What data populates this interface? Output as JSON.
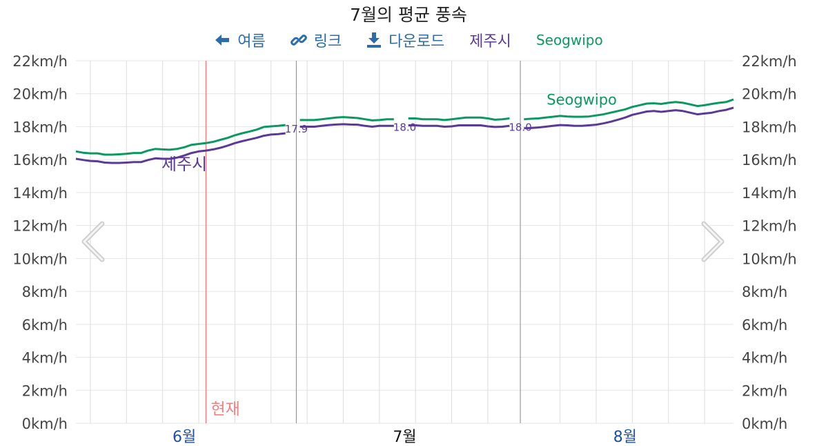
{
  "title": "7월의 평균 풍속",
  "legend": {
    "back": {
      "label": "여름",
      "icon": "arrow-left-icon"
    },
    "link": {
      "label": "링크",
      "icon": "link-icon"
    },
    "download": {
      "label": "다운로드",
      "icon": "download-icon"
    },
    "series1": "제주시",
    "series2": "Seogwipo"
  },
  "nav": {
    "prev_icon": "chevron-left-icon",
    "next_icon": "chevron-right-icon"
  },
  "colors": {
    "series1": "#5a3a97",
    "series2": "#0a9960",
    "now": "#f08080",
    "grid": "#e6e6e6",
    "tick_month": "#1f4ea8",
    "tick_current": "#111111"
  },
  "chart_data": {
    "type": "line",
    "ylim": [
      0,
      22
    ],
    "yticks": [
      "0km/h",
      "2km/h",
      "4km/h",
      "6km/h",
      "8km/h",
      "10km/h",
      "12km/h",
      "14km/h",
      "16km/h",
      "18km/h",
      "20km/h",
      "22km/h"
    ],
    "xlim": [
      1,
      92
    ],
    "xticks": [
      {
        "x": 16,
        "label": "6월",
        "current": false
      },
      {
        "x": 46.5,
        "label": "7월",
        "current": true
      },
      {
        "x": 77,
        "label": "8월",
        "current": false
      }
    ],
    "month_bounds": [
      31,
      62
    ],
    "now": {
      "x": 19,
      "label": "현재"
    },
    "series": [
      {
        "name": "제주시",
        "label_at": {
          "x": 16,
          "y": 15.8
        },
        "segments": [
          {
            "x": [
              1,
              2,
              3,
              4,
              5,
              6,
              7,
              8,
              9,
              10,
              11,
              12,
              13,
              14,
              15,
              16,
              17,
              18,
              19,
              20,
              21,
              22,
              23,
              24,
              25,
              26,
              27,
              28,
              29,
              30
            ],
            "y": [
              16.05,
              15.98,
              15.92,
              15.9,
              15.82,
              15.8,
              15.8,
              15.82,
              15.85,
              15.85,
              15.98,
              16.08,
              16.05,
              16.05,
              16.12,
              16.25,
              16.4,
              16.5,
              16.55,
              16.62,
              16.72,
              16.85,
              17.0,
              17.12,
              17.22,
              17.32,
              17.45,
              17.52,
              17.55,
              17.6
            ]
          },
          {
            "x": [
              32,
              33,
              34,
              35,
              36,
              37,
              38,
              39,
              40,
              41,
              42,
              43,
              44,
              45
            ],
            "y": [
              18.0,
              18.0,
              18.0,
              18.05,
              18.1,
              18.13,
              18.15,
              18.13,
              18.12,
              18.05,
              18.0,
              18.05,
              18.05,
              18.05
            ]
          },
          {
            "x": [
              47,
              48,
              49,
              50,
              51,
              52,
              53,
              54,
              55,
              56,
              57,
              58,
              59,
              60,
              61
            ],
            "y": [
              18.08,
              18.08,
              18.05,
              18.05,
              18.05,
              18.0,
              18.02,
              18.08,
              18.08,
              18.08,
              18.08,
              18.02,
              17.98,
              18.0,
              18.05
            ]
          },
          {
            "x": [
              63,
              64,
              65,
              66,
              67,
              68,
              69,
              70,
              71,
              72,
              73,
              74,
              75,
              76,
              77,
              78,
              79,
              80,
              81,
              82,
              83,
              84,
              85,
              86,
              87,
              88,
              89,
              90,
              91,
              92
            ],
            "y": [
              17.9,
              17.92,
              17.95,
              18.0,
              18.05,
              18.1,
              18.08,
              18.05,
              18.05,
              18.08,
              18.12,
              18.2,
              18.3,
              18.42,
              18.55,
              18.72,
              18.82,
              18.92,
              18.95,
              18.9,
              18.95,
              19.0,
              18.95,
              18.85,
              18.75,
              18.8,
              18.85,
              18.95,
              19.02,
              19.15
            ]
          }
        ],
        "boundary_labels": [
          {
            "x": 31,
            "y": 17.9,
            "text": "17.9"
          },
          {
            "x": 46,
            "y": 18.0,
            "text": "18.0"
          },
          {
            "x": 62,
            "y": 18.0,
            "text": "18.0"
          }
        ]
      },
      {
        "name": "Seogwipo",
        "label_at": {
          "x": 71,
          "y": 19.75
        },
        "segments": [
          {
            "x": [
              1,
              2,
              3,
              4,
              5,
              6,
              7,
              8,
              9,
              10,
              11,
              12,
              13,
              14,
              15,
              16,
              17,
              18,
              19,
              20,
              21,
              22,
              23,
              24,
              25,
              26,
              27,
              28,
              29,
              30
            ],
            "y": [
              16.5,
              16.42,
              16.38,
              16.38,
              16.3,
              16.3,
              16.32,
              16.35,
              16.4,
              16.4,
              16.55,
              16.65,
              16.62,
              16.6,
              16.65,
              16.75,
              16.9,
              16.95,
              17.0,
              17.08,
              17.2,
              17.32,
              17.48,
              17.6,
              17.7,
              17.82,
              17.98,
              18.02,
              18.05,
              18.1
            ]
          },
          {
            "x": [
              32,
              33,
              34,
              35,
              36,
              37,
              38,
              39,
              40,
              41,
              42,
              43,
              44,
              45
            ],
            "y": [
              18.4,
              18.4,
              18.4,
              18.45,
              18.5,
              18.55,
              18.58,
              18.55,
              18.52,
              18.45,
              18.38,
              18.4,
              18.45,
              18.45
            ]
          },
          {
            "x": [
              47,
              48,
              49,
              50,
              51,
              52,
              53,
              54,
              55,
              56,
              57,
              58,
              59,
              60,
              61
            ],
            "y": [
              18.5,
              18.5,
              18.45,
              18.45,
              18.45,
              18.4,
              18.45,
              18.5,
              18.55,
              18.55,
              18.55,
              18.5,
              18.42,
              18.45,
              18.5
            ]
          },
          {
            "x": [
              63,
              64,
              65,
              66,
              67,
              68,
              69,
              70,
              71,
              72,
              73,
              74,
              75,
              76,
              77,
              78,
              79,
              80,
              81,
              82,
              83,
              84,
              85,
              86,
              87,
              88,
              89,
              90,
              91,
              92
            ],
            "y": [
              18.45,
              18.48,
              18.5,
              18.55,
              18.6,
              18.65,
              18.62,
              18.6,
              18.6,
              18.62,
              18.68,
              18.75,
              18.85,
              18.95,
              19.05,
              19.2,
              19.3,
              19.4,
              19.42,
              19.38,
              19.45,
              19.5,
              19.45,
              19.35,
              19.25,
              19.3,
              19.38,
              19.45,
              19.5,
              19.65
            ]
          }
        ]
      }
    ]
  }
}
